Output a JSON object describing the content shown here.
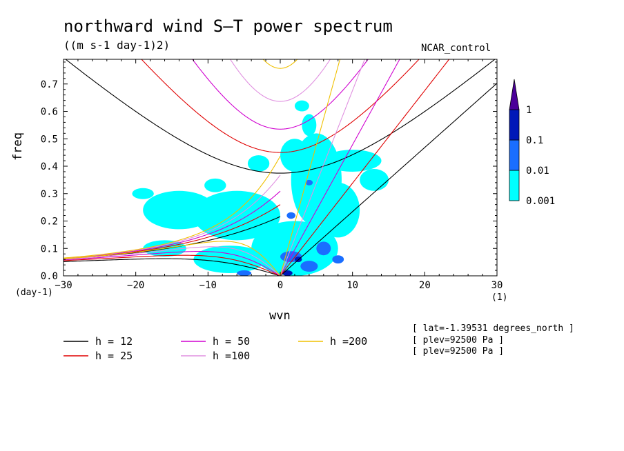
{
  "figure": {
    "title": "northward wind S–T power spectrum",
    "units": "((m s-1 day-1)2)",
    "dataset": "NCAR_control",
    "metadata": [
      "[ lat=-1.39531 degrees_north ]",
      "[ plev=92500 Pa ]",
      "[ plev=92500 Pa ]"
    ]
  },
  "chart_data": {
    "type": "contour",
    "title": "northward wind S–T power spectrum",
    "subtitle": "((m s-1 day-1)2)",
    "xlabel": "wvn",
    "ylabel": "freq",
    "x_unit": "(1)",
    "y_unit": "(day-1)",
    "xlim": [
      -30,
      30
    ],
    "ylim": [
      0,
      0.79
    ],
    "x_ticks": [
      -30,
      -20,
      -10,
      0,
      10,
      20,
      30
    ],
    "x_tick_labels": [
      "−30",
      "−20",
      "−10",
      "0",
      "10",
      "20",
      "30"
    ],
    "y_ticks": [
      0,
      0.1,
      0.2,
      0.3,
      0.4,
      0.5,
      0.6,
      0.7
    ],
    "y_tick_labels": [
      "0.0",
      "0.1",
      "0.2",
      "0.3",
      "0.4",
      "0.5",
      "0.6",
      "0.7"
    ],
    "colorbar": {
      "levels": [
        "0.001",
        "0.01",
        "0.1",
        "1"
      ],
      "colors": [
        "#00ffff",
        "#1a6eff",
        "#0018b8",
        "#4b0099"
      ]
    },
    "dispersion_curves": [
      {
        "label": "h = 12",
        "h": 12,
        "color": "#000000"
      },
      {
        "label": "h = 25",
        "h": 25,
        "color": "#e00000"
      },
      {
        "label": "h = 50",
        "h": 50,
        "color": "#d000d0"
      },
      {
        "label": "h =100",
        "h": 100,
        "color": "#e090e0"
      },
      {
        "label": "h =200",
        "h": 200,
        "color": "#f0c000"
      }
    ],
    "power_regions": [
      {
        "level": "0.001",
        "wvn": 2,
        "freq": 0.1,
        "rx": 6,
        "ry": 0.1
      },
      {
        "level": "0.001",
        "wvn": 5,
        "freq": 0.35,
        "rx": 3.5,
        "ry": 0.17
      },
      {
        "level": "0.001",
        "wvn": 2,
        "freq": 0.44,
        "rx": 2,
        "ry": 0.06
      },
      {
        "level": "0.001",
        "wvn": 10,
        "freq": 0.42,
        "rx": 4,
        "ry": 0.04
      },
      {
        "level": "0.001",
        "wvn": 8,
        "freq": 0.24,
        "rx": 3,
        "ry": 0.1
      },
      {
        "level": "0.001",
        "wvn": -6,
        "freq": 0.22,
        "rx": 6,
        "ry": 0.09
      },
      {
        "level": "0.001",
        "wvn": -14,
        "freq": 0.24,
        "rx": 5,
        "ry": 0.07
      },
      {
        "level": "0.001",
        "wvn": -7,
        "freq": 0.06,
        "rx": 5,
        "ry": 0.05
      },
      {
        "level": "0.001",
        "wvn": -16,
        "freq": 0.1,
        "rx": 3,
        "ry": 0.03
      },
      {
        "level": "0.001",
        "wvn": 4,
        "freq": 0.55,
        "rx": 1,
        "ry": 0.04
      },
      {
        "level": "0.001",
        "wvn": 3,
        "freq": 0.62,
        "rx": 1,
        "ry": 0.02
      },
      {
        "level": "0.001",
        "wvn": -3,
        "freq": 0.41,
        "rx": 1.5,
        "ry": 0.03
      },
      {
        "level": "0.001",
        "wvn": 13,
        "freq": 0.35,
        "rx": 2,
        "ry": 0.04
      },
      {
        "level": "0.001",
        "wvn": -19,
        "freq": 0.3,
        "rx": 1.5,
        "ry": 0.02
      },
      {
        "level": "0.001",
        "wvn": -9,
        "freq": 0.33,
        "rx": 1.5,
        "ry": 0.025
      },
      {
        "level": "0.01",
        "wvn": 6,
        "freq": 0.1,
        "rx": 1,
        "ry": 0.025
      },
      {
        "level": "0.01",
        "wvn": 1.5,
        "freq": 0.07,
        "rx": 1.5,
        "ry": 0.02
      },
      {
        "level": "0.01",
        "wvn": -5,
        "freq": 0.01,
        "rx": 1,
        "ry": 0.01
      },
      {
        "level": "0.01",
        "wvn": 4,
        "freq": 0.035,
        "rx": 1.2,
        "ry": 0.02
      },
      {
        "level": "0.01",
        "wvn": 4,
        "freq": 0.34,
        "rx": 0.5,
        "ry": 0.01
      },
      {
        "level": "0.01",
        "wvn": 8,
        "freq": 0.06,
        "rx": 0.8,
        "ry": 0.015
      },
      {
        "level": "0.01",
        "wvn": 1.5,
        "freq": 0.22,
        "rx": 0.6,
        "ry": 0.012
      },
      {
        "level": "0.1",
        "wvn": 1,
        "freq": 0.01,
        "rx": 0.7,
        "ry": 0.01
      },
      {
        "level": "0.1",
        "wvn": 2.5,
        "freq": 0.06,
        "rx": 0.5,
        "ry": 0.01
      }
    ]
  }
}
